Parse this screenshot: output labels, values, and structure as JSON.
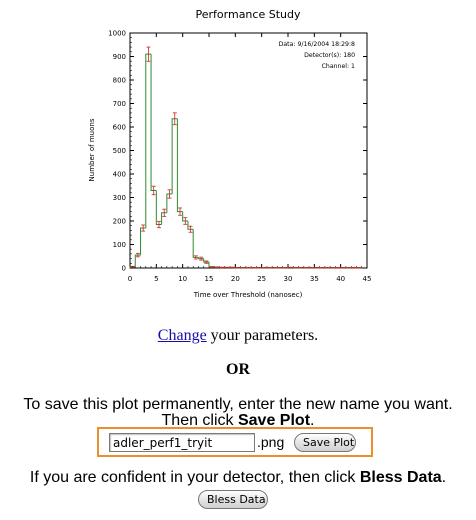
{
  "chart_data": {
    "type": "histogram",
    "title": "Performance Study",
    "xlabel": "Time over Threshold (nanosec)",
    "ylabel": "Number of muons",
    "xlim": [
      0,
      45
    ],
    "ylim": [
      0,
      1000
    ],
    "x_ticks": [
      0,
      5,
      10,
      15,
      20,
      25,
      30,
      35,
      40,
      45
    ],
    "y_ticks": [
      0,
      100,
      200,
      300,
      400,
      500,
      600,
      700,
      800,
      900,
      1000
    ],
    "bin_width": 1,
    "bin_starts": [
      0,
      1,
      2,
      3,
      4,
      5,
      6,
      7,
      8,
      9,
      10,
      11,
      12,
      13,
      14,
      15,
      16,
      17,
      18,
      19,
      20,
      21,
      22,
      23,
      24,
      25,
      26,
      27,
      28,
      29,
      30,
      31,
      32,
      33,
      34,
      35,
      36,
      37,
      38,
      39,
      40,
      41,
      42,
      43
    ],
    "values": [
      5,
      55,
      170,
      910,
      330,
      185,
      235,
      315,
      635,
      240,
      200,
      165,
      45,
      40,
      25,
      4,
      3,
      2,
      2,
      2,
      1,
      1,
      1,
      1,
      1,
      1,
      1,
      1,
      1,
      1,
      2,
      1,
      1,
      1,
      1,
      1,
      1,
      1,
      1,
      1,
      1,
      1,
      1,
      1
    ],
    "annotations": [
      "Data: 9/16/2004 18:29:8",
      "Detector(s): 180",
      "Channel: 1"
    ],
    "grid": false,
    "series_color": "#2e8b2e",
    "error_color": "#cc2222"
  },
  "links": {
    "change": "Change",
    "change_suffix": " your parameters."
  },
  "or_text": "OR",
  "save": {
    "instruction_line1": "To save this plot permanently, enter the new name you want.",
    "instruction_line2_prefix": "Then click ",
    "instruction_line2_bold": "Save Plot",
    "instruction_line2_suffix": ".",
    "filename_value": "adler_perf1_tryit",
    "extension": ".png",
    "button_label": "Save Plot",
    "highlight_color": "#e8912a"
  },
  "bless": {
    "instruction_prefix": "If you are confident in your detector, then click ",
    "instruction_bold": "Bless Data",
    "instruction_suffix": ".",
    "button_label": "Bless Data"
  }
}
